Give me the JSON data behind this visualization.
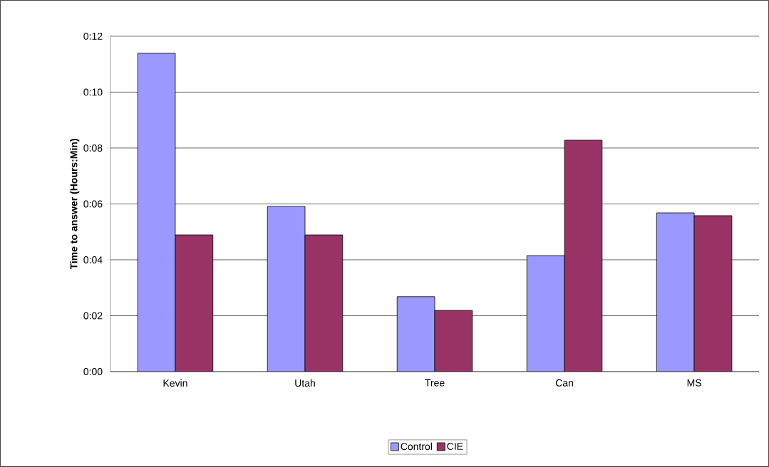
{
  "chart_data": {
    "type": "bar",
    "ylabel": "Time to answer (Hours:Min)",
    "categories": [
      "Kevin",
      "Utah",
      "Tree",
      "Can",
      "MS"
    ],
    "series": [
      {
        "name": "Control",
        "color": "#9999ff",
        "values": [
          11.39,
          5.91,
          2.68,
          4.15,
          5.68
        ]
      },
      {
        "name": "CIE",
        "color": "#993366",
        "values": [
          4.89,
          4.89,
          2.19,
          8.28,
          5.58
        ]
      }
    ],
    "ylim": [
      0,
      12
    ],
    "yticks": [
      {
        "value": 0,
        "label": "0:00"
      },
      {
        "value": 2,
        "label": "0:02"
      },
      {
        "value": 4,
        "label": "0:04"
      },
      {
        "value": 6,
        "label": "0:06"
      },
      {
        "value": 8,
        "label": "0:08"
      },
      {
        "value": 10,
        "label": "0:10"
      },
      {
        "value": 12,
        "label": "0:12"
      }
    ],
    "grid": "y",
    "legend": "bottom"
  }
}
